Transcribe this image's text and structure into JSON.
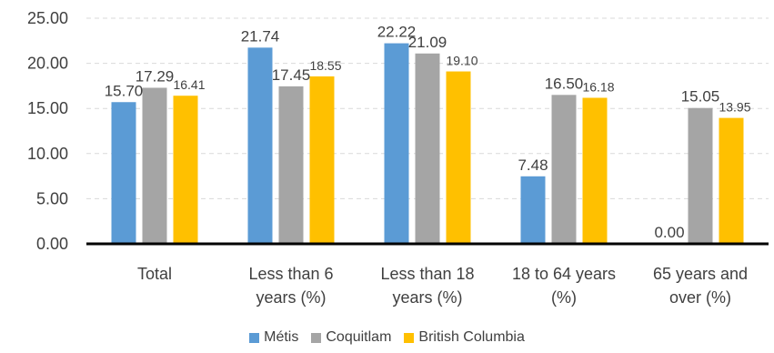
{
  "chart_data": {
    "type": "bar",
    "categories": [
      [
        "Total"
      ],
      [
        "Less than 6",
        "years (%)"
      ],
      [
        "Less than 18",
        "years (%)"
      ],
      [
        "18 to 64 years",
        "(%)"
      ],
      [
        "65 years and",
        "over (%)"
      ]
    ],
    "series": [
      {
        "name": "Métis",
        "color": "#5B9BD5",
        "values": [
          15.7,
          21.74,
          22.22,
          7.48,
          0.0
        ],
        "labels": [
          "15.70",
          "21.74",
          "22.22",
          "7.48",
          "0.00"
        ]
      },
      {
        "name": "Coquitlam",
        "color": "#A5A5A5",
        "values": [
          17.29,
          17.45,
          21.09,
          16.5,
          15.05
        ],
        "labels": [
          "17.29",
          "17.45",
          "21.09",
          "16.50",
          "15.05"
        ]
      },
      {
        "name": "British Columbia",
        "color": "#FFC000",
        "values": [
          16.41,
          18.55,
          19.1,
          16.18,
          13.95
        ],
        "labels": [
          "16.41",
          "18.55",
          "19.10",
          "16.18",
          "13.95"
        ]
      }
    ],
    "yticks": [
      "0.00",
      "5.00",
      "10.00",
      "15.00",
      "20.00",
      "25.00"
    ],
    "ylim": [
      0,
      25
    ],
    "grid": true,
    "legend_position": "bottom"
  }
}
